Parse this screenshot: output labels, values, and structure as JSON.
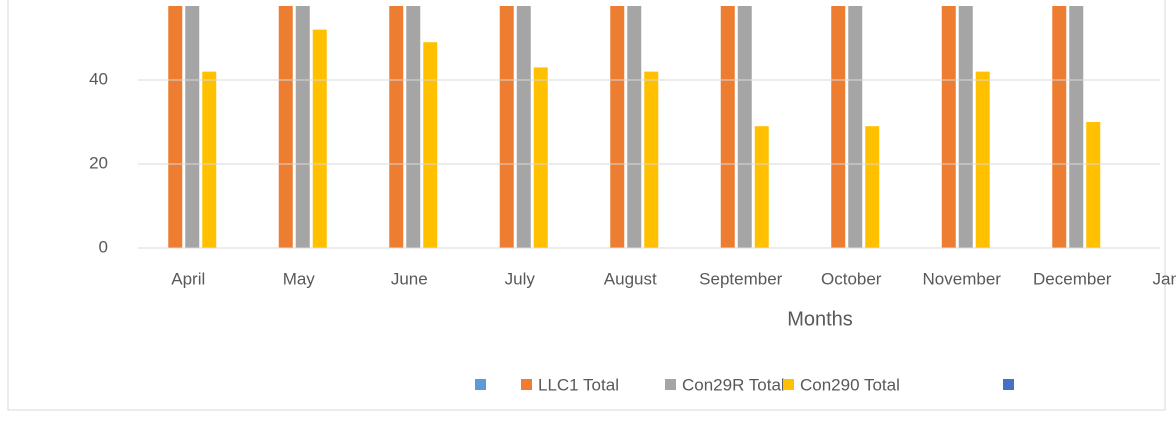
{
  "chart_data": {
    "type": "bar",
    "categories": [
      "April",
      "May",
      "June",
      "July",
      "August",
      "September",
      "October",
      "November",
      "December",
      "January"
    ],
    "x_axis_label": "Months",
    "series": [
      {
        "color": "#5b9bd5",
        "values": [
          null,
          null,
          null,
          null,
          null,
          null,
          null,
          null,
          null,
          null
        ]
      },
      {
        "name": "LLC1 Total",
        "color": "#ed7d31",
        "values": [
          58,
          58,
          58,
          58,
          58,
          58,
          58,
          58,
          58,
          null
        ]
      },
      {
        "name": "Con29R Total",
        "color": "#a5a5a5",
        "values": [
          58,
          58,
          58,
          58,
          58,
          58,
          58,
          58,
          58,
          null
        ]
      },
      {
        "name": "Con290 Total",
        "color": "#ffc000",
        "values": [
          42,
          52,
          49,
          43,
          42,
          29,
          29,
          42,
          30,
          null
        ]
      },
      {
        "color": "#4472c4",
        "values": [
          null,
          null,
          null,
          null,
          null,
          null,
          null,
          null,
          null,
          null
        ]
      }
    ],
    "ylim": [
      0,
      57.6
    ],
    "yticks": [
      0,
      20,
      40
    ],
    "grid": true,
    "legend": "bottom"
  }
}
